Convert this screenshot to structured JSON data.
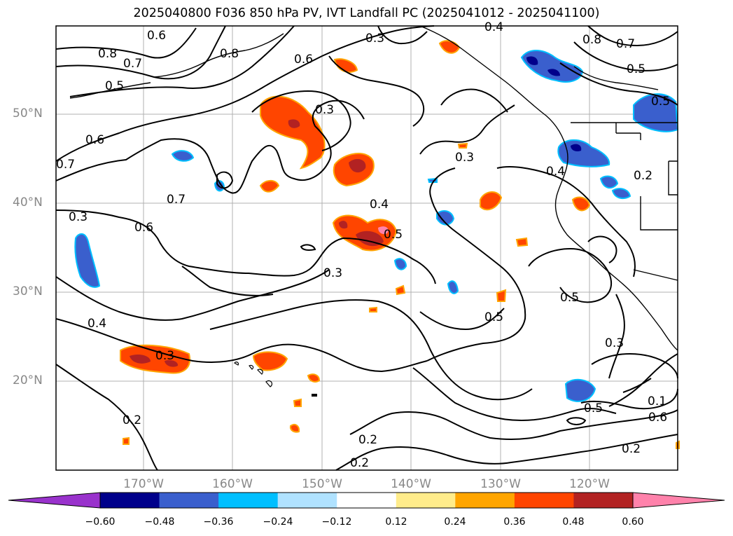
{
  "title": "2025040800 F036 850 hPa PV, IVT Landfall PC (2025041012 - 2025041100)",
  "lat_labels": [
    "50°N",
    "40°N",
    "30°N",
    "20°N"
  ],
  "lon_labels": [
    "170°W",
    "160°W",
    "150°W",
    "140°W",
    "130°W",
    "120°W"
  ],
  "contour_labels": [
    "0.8",
    "0.7",
    "0.6",
    "0.8",
    "0.6",
    "0.5",
    "0.3",
    "0.4",
    "0.8",
    "0.7",
    "0.5",
    "0.5",
    "0.3",
    "0.6",
    "0.7",
    "0.3",
    "0.7",
    "0.4",
    "0.3",
    "0.4",
    "0.5",
    "0.6",
    "0.3",
    "0.4",
    "0.3",
    "0.5",
    "0.5",
    "0.3",
    "0.5",
    "0.2",
    "0.2",
    "0.2",
    "0.6",
    "0.2",
    "0.1",
    "0.2"
  ],
  "colorbar": {
    "ticks": [
      "−0.60",
      "−0.48",
      "−0.36",
      "−0.24",
      "−0.12",
      "0.12",
      "0.24",
      "0.36",
      "0.48",
      "0.60"
    ],
    "colors": [
      "#9932CC",
      "#00008B",
      "#3A5FCD",
      "#00BFFF",
      "#B0E2FF",
      "#FFFFFF",
      "#FFEC8B",
      "#FFA500",
      "#FF4500",
      "#B22222",
      "#FF82AB"
    ]
  }
}
